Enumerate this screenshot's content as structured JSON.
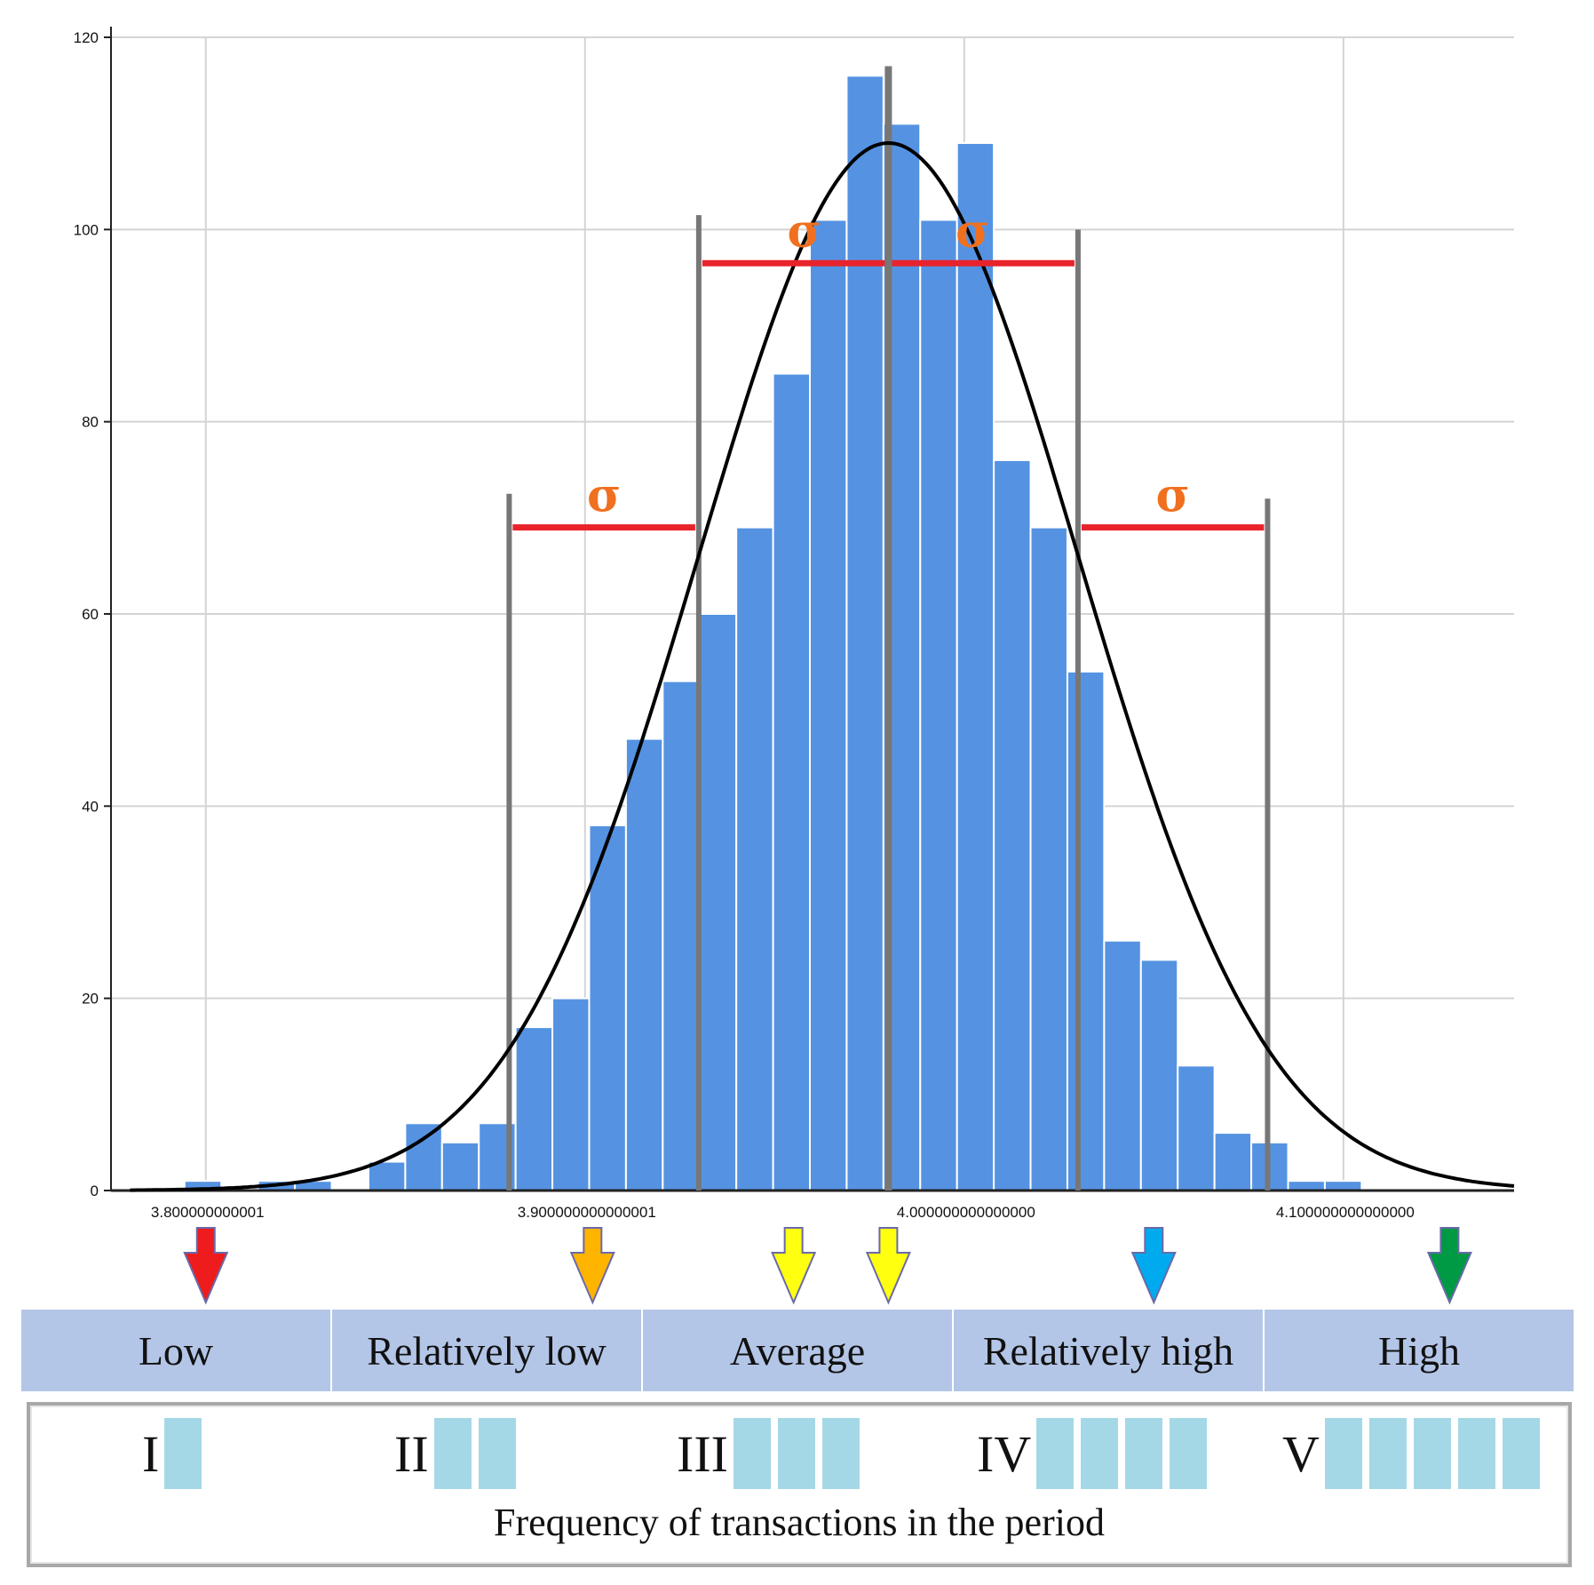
{
  "chart_data": {
    "type": "bar",
    "subtype": "histogram_with_normal_curve",
    "bin_start": 3.775,
    "bin_width": 0.0097,
    "counts": [
      0,
      0,
      1,
      0,
      1,
      1,
      0,
      3,
      7,
      5,
      7,
      17,
      20,
      38,
      47,
      53,
      60,
      69,
      85,
      101,
      116,
      111,
      101,
      109,
      76,
      69,
      54,
      26,
      24,
      13,
      6,
      5,
      1,
      1,
      0,
      0
    ],
    "xlim": [
      3.775,
      4.145
    ],
    "ylim": [
      0,
      120
    ],
    "y_ticks": [
      "0",
      "20",
      "40",
      "60",
      "80",
      "100",
      "120"
    ],
    "x_ticks": [
      {
        "value": 3.8,
        "label": "3.800000000001"
      },
      {
        "value": 3.9,
        "label": "3.900000000000001"
      },
      {
        "value": 4.0,
        "label": "4.000000000000000"
      },
      {
        "value": 4.1,
        "label": "4.100000000000000"
      }
    ],
    "normal_curve": {
      "mean": 3.98,
      "sd": 0.05,
      "peak": 109
    },
    "mean": 3.98,
    "sigma_lines": [
      3.88,
      3.93,
      4.03,
      4.08
    ],
    "sigma_symbol": "σ",
    "grid": true,
    "bar_color": "#5593e2",
    "curve_color": "#000000",
    "sigma_line_color": "#e8232b",
    "vertical_line_color": "#777777",
    "sigma_color": "#f07020"
  },
  "arrows": [
    {
      "name": "low",
      "value": 3.8,
      "color": "#ee1c1c"
    },
    {
      "name": "relatively-low",
      "value": 3.902,
      "color": "#ffb400"
    },
    {
      "name": "average-left",
      "value": 3.955,
      "color": "#ffff10"
    },
    {
      "name": "average-right",
      "value": 3.98,
      "color": "#ffff10"
    },
    {
      "name": "relatively-high",
      "value": 4.05,
      "color": "#00aaee"
    },
    {
      "name": "high",
      "value": 4.128,
      "color": "#009944"
    }
  ],
  "categories": [
    "Low",
    "Relatively low",
    "Average",
    "Relatively high",
    "High"
  ],
  "levels": [
    {
      "label": "I",
      "blocks": 1
    },
    {
      "label": "II",
      "blocks": 2
    },
    {
      "label": "III",
      "blocks": 3
    },
    {
      "label": "IV",
      "blocks": 4
    },
    {
      "label": "V",
      "blocks": 5
    }
  ],
  "frequency_caption": "Frequency of transactions in the period",
  "colors": {
    "category_bg": "#b4c6e7",
    "block": "#a5d8e6"
  }
}
